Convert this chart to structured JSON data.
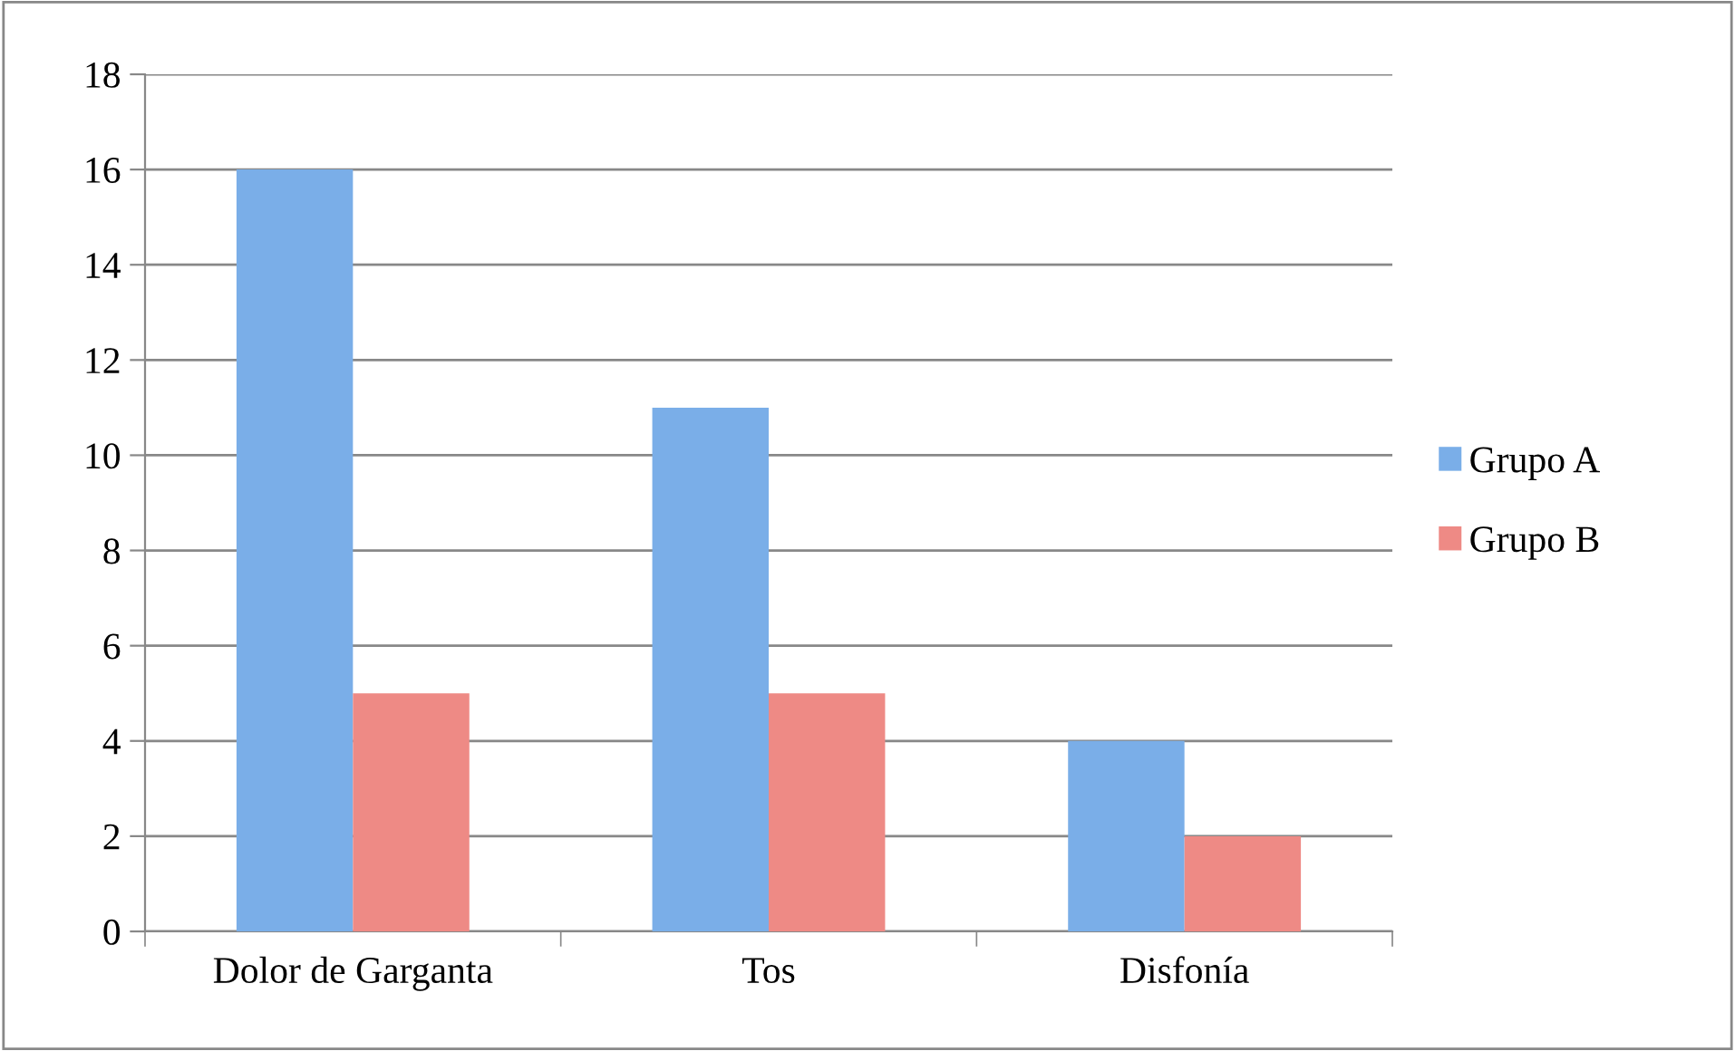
{
  "chart_data": {
    "type": "bar",
    "categories": [
      "Dolor de Garganta",
      "Tos",
      "Disfonía"
    ],
    "series": [
      {
        "name": "Grupo A",
        "color": "#7aaee8",
        "values": [
          16,
          11,
          4
        ]
      },
      {
        "name": "Grupo B",
        "color": "#ee8a85",
        "values": [
          5,
          5,
          2
        ]
      }
    ],
    "ylim": [
      0,
      18
    ],
    "yticks": [
      0,
      2,
      4,
      6,
      8,
      10,
      12,
      14,
      16,
      18
    ],
    "grid": "y",
    "legend": "right"
  }
}
